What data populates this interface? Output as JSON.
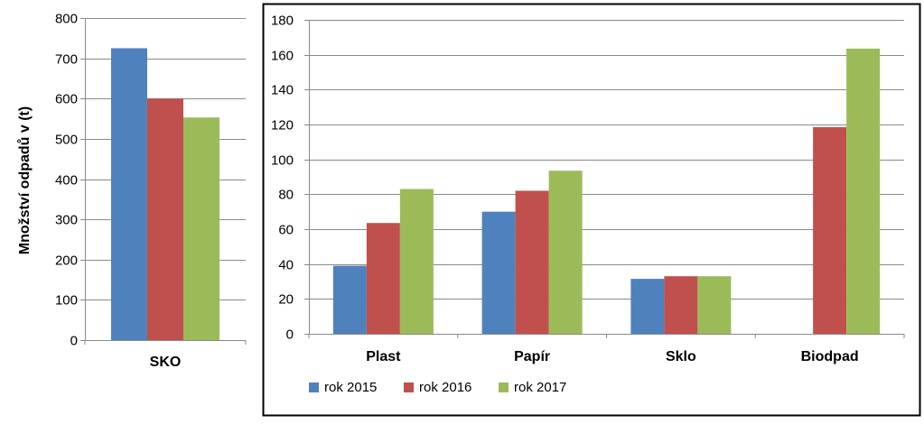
{
  "chart_data": [
    {
      "type": "bar",
      "ylabel": "Množství odpadů v (t)",
      "categories": [
        "SKO"
      ],
      "ylim": [
        0,
        800
      ],
      "yticks": [
        0,
        100,
        200,
        300,
        400,
        500,
        600,
        700,
        800
      ],
      "grid": true,
      "series": [
        {
          "name": "rok 2015",
          "color": "#4F81BD",
          "values": [
            725
          ]
        },
        {
          "name": "rok 2016",
          "color": "#C0504D",
          "values": [
            600
          ]
        },
        {
          "name": "rok 2017",
          "color": "#9BBB59",
          "values": [
            553
          ]
        }
      ]
    },
    {
      "type": "bar",
      "categories": [
        "Plast",
        "Papír",
        "Sklo",
        "Biodpad"
      ],
      "ylim": [
        0,
        180
      ],
      "yticks": [
        0,
        20,
        40,
        60,
        80,
        100,
        120,
        140,
        160,
        180
      ],
      "grid": true,
      "legend_position": "bottom",
      "series": [
        {
          "name": "rok 2015",
          "color": "#4F81BD",
          "values": [
            39,
            70,
            31.5,
            0
          ]
        },
        {
          "name": "rok 2016",
          "color": "#C0504D",
          "values": [
            63.5,
            82,
            33,
            118.5
          ]
        },
        {
          "name": "rok 2017",
          "color": "#9BBB59",
          "values": [
            83,
            93.5,
            33,
            163.5
          ]
        }
      ]
    }
  ]
}
